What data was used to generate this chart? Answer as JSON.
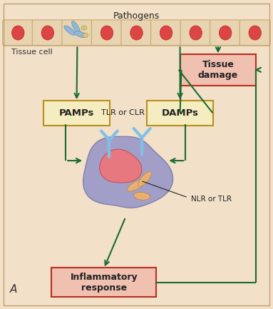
{
  "bg_color": "#f2e0c8",
  "cell_row_color": "#e8d4b0",
  "cell_border_color": "#c8a870",
  "cell_nucleus_color": "#dd4444",
  "arrow_color": "#1a6b30",
  "box_yellow_face": "#f5edc0",
  "box_yellow_edge": "#b89020",
  "box_red_face": "#f0c0b0",
  "box_red_edge": "#b83020",
  "outer_border_color": "#c0a070",
  "title": "Pathogens",
  "tissue_cell_label": "Tissue cell",
  "pamps_label": "PAMPs",
  "damps_label": "DAMPs",
  "tlr_clr_label": "TLR or CLR",
  "nlr_tlr_label": "NLR or TLR",
  "inflammatory_label": "Inflammatory\nresponse",
  "tissue_damage_label": "Tissue\ndamage",
  "panel_label": "A",
  "num_cells": 9
}
